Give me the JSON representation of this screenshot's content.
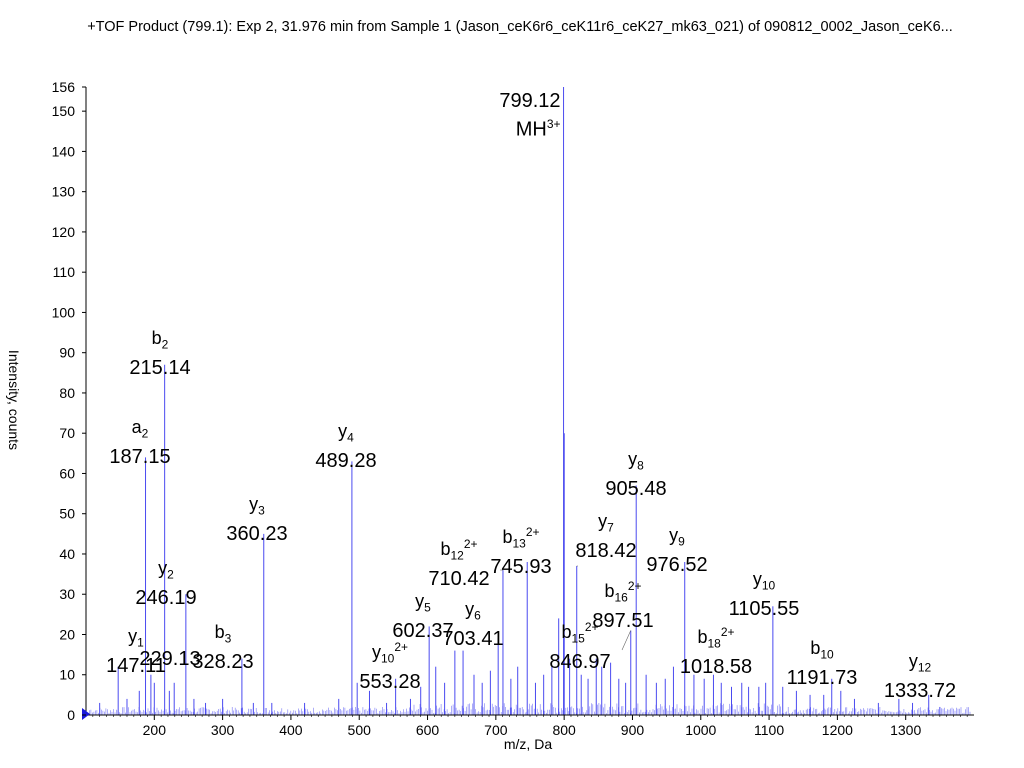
{
  "chart_data": {
    "type": "line",
    "title": "+TOF Product (799.1): Exp 2, 31.976 min from Sample 1 (Jason_ceK6r6_ceK11r6_ceK27_mk63_021) of 090812_0002_Jason_ceK6...",
    "xlabel": "m/z, Da",
    "ylabel": "Intensity, counts",
    "xlim": [
      100,
      1400
    ],
    "ylim": [
      0,
      156
    ],
    "y_ticks": [
      0,
      10,
      20,
      30,
      40,
      50,
      60,
      70,
      80,
      90,
      100,
      110,
      120,
      130,
      140,
      150,
      156
    ],
    "x_ticks": [
      200,
      300,
      400,
      500,
      600,
      700,
      800,
      900,
      1000,
      1100,
      1200,
      1300
    ],
    "grid": false,
    "series": [
      {
        "peaks": [
          [
            147.11,
            12
          ],
          [
            187.15,
            64
          ],
          [
            215.14,
            87
          ],
          [
            229.13,
            8
          ],
          [
            246.19,
            30
          ],
          [
            328.23,
            14
          ],
          [
            360.23,
            45
          ],
          [
            489.28,
            63
          ],
          [
            553.28,
            9
          ],
          [
            602.37,
            22
          ],
          [
            703.41,
            19
          ],
          [
            710.42,
            36
          ],
          [
            745.93,
            38
          ],
          [
            799.12,
            156
          ],
          [
            800.1,
            70
          ],
          [
            818.42,
            37
          ],
          [
            846.97,
            14
          ],
          [
            897.51,
            21
          ],
          [
            905.48,
            57
          ],
          [
            976.52,
            38
          ],
          [
            1018.58,
            10
          ],
          [
            1105.55,
            27
          ],
          [
            1191.73,
            9
          ],
          [
            1333.72,
            5
          ],
          [
            120,
            3
          ],
          [
            160,
            4
          ],
          [
            178,
            6
          ],
          [
            195,
            10
          ],
          [
            200,
            8
          ],
          [
            222,
            6
          ],
          [
            258,
            4
          ],
          [
            275,
            3
          ],
          [
            300,
            4
          ],
          [
            345,
            3
          ],
          [
            372,
            3
          ],
          [
            420,
            3
          ],
          [
            470,
            4
          ],
          [
            497,
            8
          ],
          [
            515,
            6
          ],
          [
            540,
            3
          ],
          [
            575,
            4
          ],
          [
            590,
            7
          ],
          [
            612,
            12
          ],
          [
            625,
            8
          ],
          [
            640,
            16
          ],
          [
            652,
            16
          ],
          [
            668,
            10
          ],
          [
            680,
            8
          ],
          [
            692,
            11
          ],
          [
            722,
            9
          ],
          [
            732,
            12
          ],
          [
            758,
            8
          ],
          [
            770,
            10
          ],
          [
            782,
            12
          ],
          [
            792,
            24
          ],
          [
            808,
            14
          ],
          [
            825,
            10
          ],
          [
            835,
            9
          ],
          [
            855,
            12
          ],
          [
            868,
            13
          ],
          [
            880,
            9
          ],
          [
            890,
            8
          ],
          [
            920,
            10
          ],
          [
            935,
            8
          ],
          [
            948,
            9
          ],
          [
            960,
            12
          ],
          [
            990,
            10
          ],
          [
            1005,
            9
          ],
          [
            1030,
            8
          ],
          [
            1045,
            7
          ],
          [
            1060,
            8
          ],
          [
            1070,
            7
          ],
          [
            1085,
            7
          ],
          [
            1095,
            8
          ],
          [
            1120,
            7
          ],
          [
            1140,
            6
          ],
          [
            1160,
            5
          ],
          [
            1180,
            5
          ],
          [
            1205,
            6
          ],
          [
            1225,
            4
          ],
          [
            1260,
            3
          ],
          [
            1290,
            4
          ],
          [
            1310,
            3
          ],
          [
            1350,
            2
          ]
        ]
      }
    ],
    "annotations": [
      {
        "ion": "y",
        "sub": "1",
        "sup": "",
        "mz": "147.11",
        "x": 147.11
      },
      {
        "ion": "a",
        "sub": "2",
        "sup": "",
        "mz": "187.15",
        "x": 187.15
      },
      {
        "ion": "b",
        "sub": "2",
        "sup": "",
        "mz": "215.14",
        "x": 215.14
      },
      {
        "ion": "",
        "sub": "",
        "sup": "",
        "mz": "229.13",
        "x": 229.13
      },
      {
        "ion": "y",
        "sub": "2",
        "sup": "",
        "mz": "246.19",
        "x": 246.19
      },
      {
        "ion": "b",
        "sub": "3",
        "sup": "",
        "mz": "328.23",
        "x": 328.23
      },
      {
        "ion": "y",
        "sub": "3",
        "sup": "",
        "mz": "360.23",
        "x": 360.23
      },
      {
        "ion": "y",
        "sub": "4",
        "sup": "",
        "mz": "489.28",
        "x": 489.28
      },
      {
        "ion": "y",
        "sub": "10",
        "sup": "2+",
        "mz": "553.28",
        "x": 553.28
      },
      {
        "ion": "y",
        "sub": "5",
        "sup": "",
        "mz": "602.37",
        "x": 602.37
      },
      {
        "ion": "y",
        "sub": "6",
        "sup": "",
        "mz": "703.41",
        "x": 703.41
      },
      {
        "ion": "b",
        "sub": "12",
        "sup": "2+",
        "mz": "710.42",
        "x": 710.42
      },
      {
        "ion": "b",
        "sub": "13",
        "sup": "2+",
        "mz": "745.93",
        "x": 745.93
      },
      {
        "ion": "MH",
        "sub": "",
        "sup": "3+",
        "mz": "799.12",
        "x": 799.12
      },
      {
        "ion": "y",
        "sub": "7",
        "sup": "",
        "mz": "818.42",
        "x": 818.42
      },
      {
        "ion": "b",
        "sub": "15",
        "sup": "2+",
        "mz": "846.97",
        "x": 846.97
      },
      {
        "ion": "b",
        "sub": "16",
        "sup": "2+",
        "mz": "897.51",
        "x": 897.51
      },
      {
        "ion": "y",
        "sub": "8",
        "sup": "",
        "mz": "905.48",
        "x": 905.48
      },
      {
        "ion": "y",
        "sub": "9",
        "sup": "",
        "mz": "976.52",
        "x": 976.52
      },
      {
        "ion": "b",
        "sub": "18",
        "sup": "2+",
        "mz": "1018.58",
        "x": 1018.58
      },
      {
        "ion": "y",
        "sub": "10",
        "sup": "",
        "mz": "1105.55",
        "x": 1105.55
      },
      {
        "ion": "b",
        "sub": "10",
        "sup": "",
        "mz": "1191.73",
        "x": 1191.73
      },
      {
        "ion": "y",
        "sub": "12",
        "sup": "",
        "mz": "1333.72",
        "x": 1333.72
      }
    ],
    "colors": {
      "peaks": "#4a4af0",
      "axis": "#000000",
      "marker": "#1a1adc"
    }
  }
}
